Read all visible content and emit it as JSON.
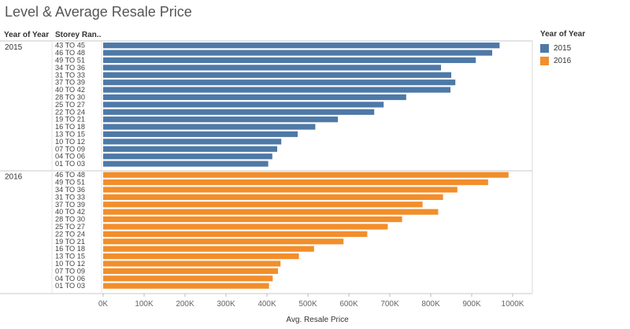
{
  "title": "Level & Average Resale Price",
  "header": {
    "year_col": "Year of Year",
    "storey_col": "Storey Ran.."
  },
  "legend": {
    "title": "Year of Year",
    "items": [
      {
        "label": "2015",
        "color": "#4e79a7"
      },
      {
        "label": "2016",
        "color": "#f28e2b"
      }
    ]
  },
  "chart_data": {
    "type": "bar",
    "orientation": "horizontal",
    "xlabel": "Avg. Resale Price",
    "xlim": [
      0,
      1050000
    ],
    "xticks": [
      0,
      100000,
      200000,
      300000,
      400000,
      500000,
      600000,
      700000,
      800000,
      900000,
      1000000
    ],
    "xtick_labels": [
      "0K",
      "100K",
      "200K",
      "300K",
      "400K",
      "500K",
      "600K",
      "700K",
      "800K",
      "900K",
      "1000K"
    ],
    "grid": false,
    "legend_position": "right",
    "groups": [
      {
        "name": "2015",
        "color": "#4e79a7",
        "categories": [
          "43 TO 45",
          "46 TO 48",
          "49 TO 51",
          "34 TO 36",
          "31 TO 33",
          "37 TO 39",
          "40 TO 42",
          "28 TO 30",
          "25 TO 27",
          "22 TO 24",
          "19 TO 21",
          "16 TO 18",
          "13 TO 15",
          "10 TO 12",
          "07 TO 09",
          "04 TO 06",
          "01 TO 03"
        ],
        "values": [
          968000,
          950000,
          910000,
          825000,
          850000,
          860000,
          848000,
          740000,
          685000,
          662000,
          573000,
          518000,
          475000,
          435000,
          425000,
          413000,
          403000
        ]
      },
      {
        "name": "2016",
        "color": "#f28e2b",
        "categories": [
          "46 TO 48",
          "49 TO 51",
          "34 TO 36",
          "31 TO 33",
          "37 TO 39",
          "40 TO 42",
          "28 TO 30",
          "25 TO 27",
          "22 TO 24",
          "19 TO 21",
          "16 TO 18",
          "13 TO 15",
          "10 TO 12",
          "07 TO 09",
          "04 TO 06",
          "01 TO 03"
        ],
        "values": [
          990000,
          940000,
          865000,
          830000,
          780000,
          818000,
          730000,
          695000,
          645000,
          587000,
          515000,
          478000,
          433000,
          427000,
          414000,
          405000
        ]
      }
    ]
  }
}
